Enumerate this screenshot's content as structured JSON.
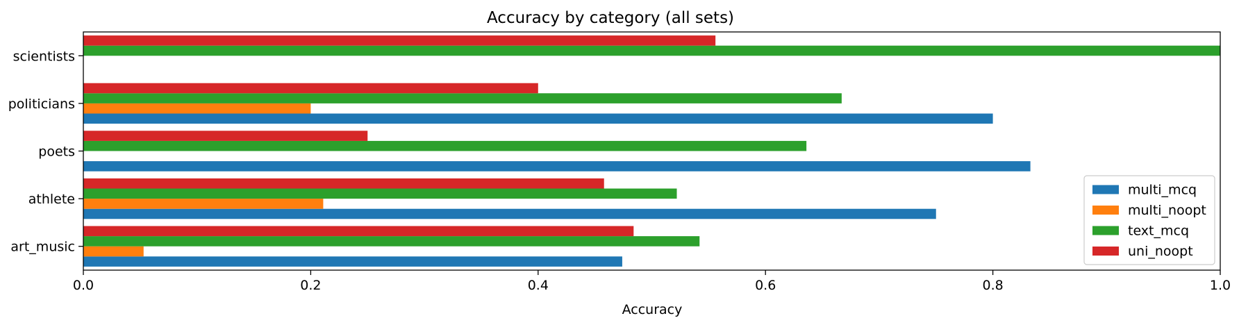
{
  "chart_data": {
    "type": "bar",
    "orientation": "horizontal",
    "title": "Accuracy by category (all sets)",
    "xlabel": "Accuracy",
    "ylabel": "",
    "xlim": [
      0.0,
      1.0
    ],
    "x_ticks": [
      "0.0",
      "0.2",
      "0.4",
      "0.6",
      "0.8",
      "1.0"
    ],
    "categories": [
      "art_music",
      "athlete",
      "poets",
      "politicians",
      "scientists"
    ],
    "series": [
      {
        "name": "multi_mcq",
        "color": "#1f77b4",
        "values": [
          0.474,
          0.75,
          0.833,
          0.8,
          null
        ]
      },
      {
        "name": "multi_noopt",
        "color": "#ff7f0e",
        "values": [
          0.053,
          0.211,
          null,
          0.2,
          null
        ]
      },
      {
        "name": "text_mcq",
        "color": "#2ca02c",
        "values": [
          0.542,
          0.522,
          0.636,
          0.667,
          1.0
        ]
      },
      {
        "name": "uni_noopt",
        "color": "#d62728",
        "values": [
          0.484,
          0.458,
          0.25,
          0.4,
          0.556
        ]
      }
    ],
    "legend_position": "lower-right",
    "grid": false
  }
}
